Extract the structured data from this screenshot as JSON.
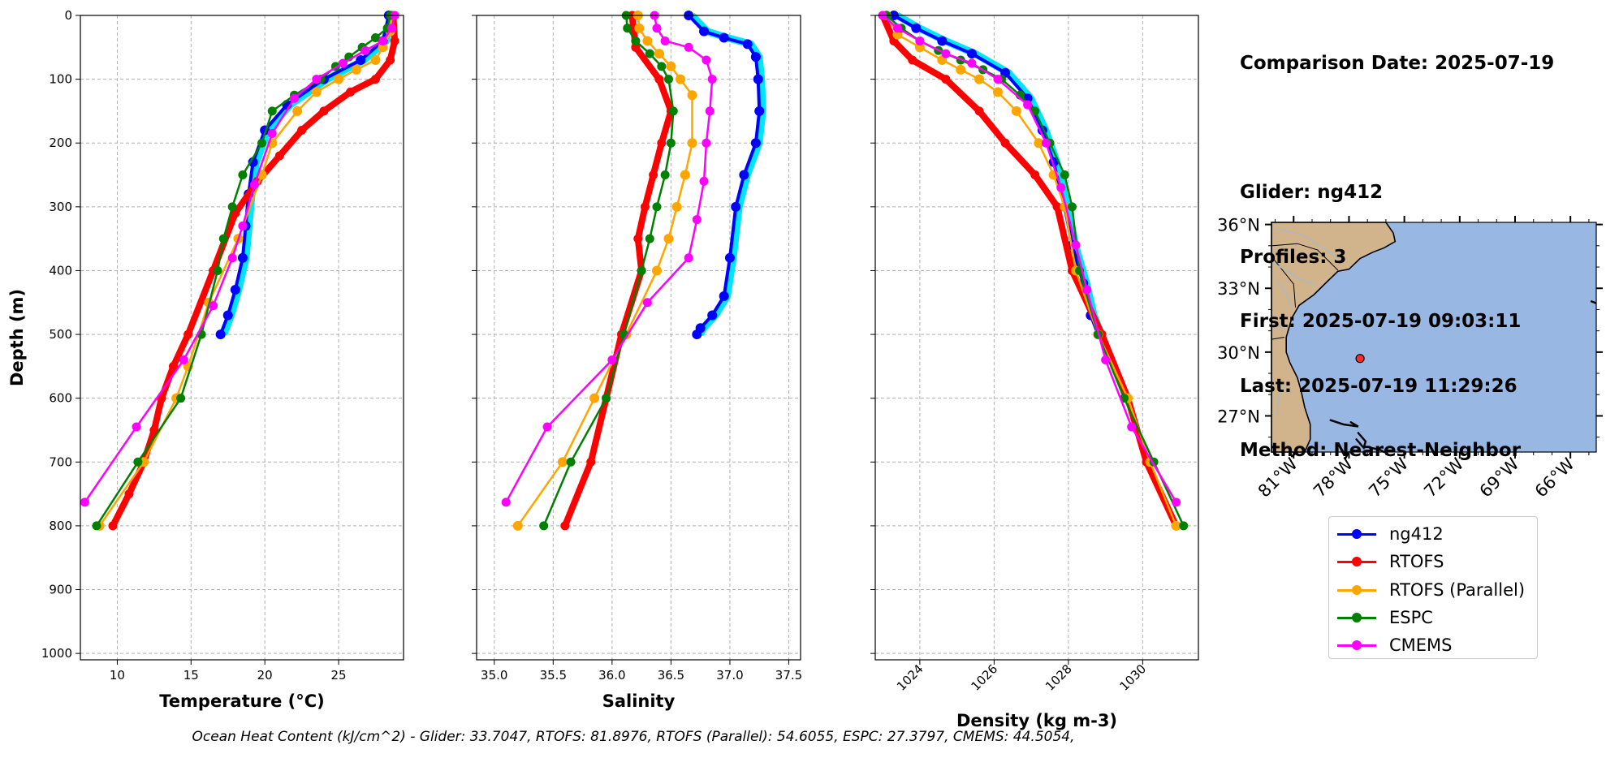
{
  "colors": {
    "ng412": "#0000ff",
    "ng412_raw": "#00e5ff",
    "RTOFS": "#ff0000",
    "RTOFS (Parallel)": "#ffa500",
    "ESPC": "#008000",
    "CMEMS": "#ff00ff",
    "land": "#d2b48c",
    "ocean": "#98b7e2",
    "rivers": "#aab8c8",
    "grid": "#b0b0b0"
  },
  "info": {
    "comparison_date": "Comparison Date: 2025-07-19",
    "glider": "Glider: ng412",
    "profiles": "Profiles: 3",
    "first": "First: 2025-07-19 09:03:11",
    "last": "Last: 2025-07-19 11:29:26",
    "method": "Method: Nearest-Neighbor"
  },
  "legend": [
    "ng412",
    "RTOFS",
    "RTOFS (Parallel)",
    "ESPC",
    "CMEMS"
  ],
  "footer": "Ocean Heat Content (kJ/cm^2) - Glider: 33.7047,  RTOFS: 81.8976,  RTOFS (Parallel): 54.6055,  ESPC: 27.3797,  CMEMS: 44.5054,",
  "chart_data": [
    {
      "type": "line",
      "xlabel": "Temperature (°C)",
      "ylabel": "Depth (m)",
      "xlim": [
        7.5,
        29.4
      ],
      "ylim": [
        1010,
        0
      ],
      "xticks": [
        10,
        15,
        20,
        25
      ],
      "yticks": [
        0,
        100,
        200,
        300,
        400,
        500,
        600,
        700,
        800,
        900,
        1000
      ],
      "grid": true,
      "series": [
        {
          "name": "ng412",
          "values": [
            [
              28.4,
              0
            ],
            [
              28.0,
              40
            ],
            [
              26.5,
              70
            ],
            [
              24.0,
              100
            ],
            [
              21.5,
              140
            ],
            [
              20.0,
              180
            ],
            [
              19.2,
              230
            ],
            [
              18.9,
              280
            ],
            [
              18.7,
              330
            ],
            [
              18.5,
              380
            ],
            [
              18.0,
              430
            ],
            [
              17.5,
              470
            ],
            [
              17.0,
              500
            ]
          ]
        },
        {
          "name": "RTOFS",
          "values": [
            [
              28.7,
              0
            ],
            [
              28.8,
              40
            ],
            [
              28.5,
              70
            ],
            [
              27.5,
              100
            ],
            [
              25.8,
              120
            ],
            [
              24.0,
              150
            ],
            [
              22.5,
              180
            ],
            [
              21.0,
              220
            ],
            [
              19.5,
              260
            ],
            [
              18.0,
              310
            ],
            [
              16.5,
              400
            ],
            [
              14.8,
              500
            ],
            [
              13.8,
              550
            ],
            [
              13.0,
              600
            ],
            [
              12.5,
              650
            ],
            [
              11.8,
              700
            ],
            [
              10.8,
              750
            ],
            [
              9.7,
              800
            ]
          ]
        },
        {
          "name": "RTOFS (Parallel)",
          "values": [
            [
              28.6,
              0
            ],
            [
              28.5,
              25
            ],
            [
              28.0,
              50
            ],
            [
              27.5,
              70
            ],
            [
              26.2,
              85
            ],
            [
              25.0,
              100
            ],
            [
              23.5,
              120
            ],
            [
              22.2,
              150
            ],
            [
              20.5,
              200
            ],
            [
              19.8,
              250
            ],
            [
              18.2,
              350
            ],
            [
              16.2,
              450
            ],
            [
              14.8,
              550
            ],
            [
              14.0,
              600
            ],
            [
              11.8,
              700
            ],
            [
              8.8,
              800
            ]
          ]
        },
        {
          "name": "ESPC",
          "values": [
            [
              28.5,
              0
            ],
            [
              28.3,
              20
            ],
            [
              27.5,
              35
            ],
            [
              26.6,
              50
            ],
            [
              25.7,
              65
            ],
            [
              24.8,
              80
            ],
            [
              23.8,
              100
            ],
            [
              22.0,
              125
            ],
            [
              20.5,
              150
            ],
            [
              19.8,
              200
            ],
            [
              18.5,
              250
            ],
            [
              17.8,
              300
            ],
            [
              17.2,
              350
            ],
            [
              16.8,
              400
            ],
            [
              15.7,
              500
            ],
            [
              14.3,
              600
            ],
            [
              11.4,
              700
            ],
            [
              8.6,
              800
            ]
          ]
        },
        {
          "name": "CMEMS",
          "values": [
            [
              28.8,
              0
            ],
            [
              28.6,
              20
            ],
            [
              28.0,
              40
            ],
            [
              26.8,
              55
            ],
            [
              25.3,
              75
            ],
            [
              23.5,
              100
            ],
            [
              22.0,
              130
            ],
            [
              20.5,
              185
            ],
            [
              19.3,
              265
            ],
            [
              18.5,
              330
            ],
            [
              17.8,
              380
            ],
            [
              16.5,
              455
            ],
            [
              14.5,
              540
            ],
            [
              11.3,
              645
            ],
            [
              7.8,
              763
            ]
          ]
        }
      ]
    },
    {
      "type": "line",
      "xlabel": "Salinity",
      "xlim": [
        34.85,
        37.6
      ],
      "ylim": [
        1010,
        0
      ],
      "xticks": [
        35.0,
        35.5,
        36.0,
        36.5,
        37.0,
        37.5
      ],
      "grid": true,
      "series": [
        {
          "name": "ng412",
          "values": [
            [
              36.65,
              0
            ],
            [
              36.78,
              25
            ],
            [
              36.95,
              35
            ],
            [
              37.15,
              45
            ],
            [
              37.22,
              65
            ],
            [
              37.24,
              100
            ],
            [
              37.25,
              150
            ],
            [
              37.22,
              200
            ],
            [
              37.12,
              250
            ],
            [
              37.05,
              300
            ],
            [
              37.0,
              380
            ],
            [
              36.95,
              440
            ],
            [
              36.85,
              470
            ],
            [
              36.75,
              490
            ],
            [
              36.72,
              500
            ]
          ]
        },
        {
          "name": "RTOFS",
          "values": [
            [
              36.17,
              0
            ],
            [
              36.2,
              50
            ],
            [
              36.4,
              100
            ],
            [
              36.5,
              150
            ],
            [
              36.42,
              200
            ],
            [
              36.35,
              250
            ],
            [
              36.28,
              300
            ],
            [
              36.22,
              350
            ],
            [
              36.25,
              400
            ],
            [
              36.08,
              500
            ],
            [
              35.95,
              600
            ],
            [
              35.82,
              700
            ],
            [
              35.6,
              800
            ]
          ]
        },
        {
          "name": "RTOFS (Parallel)",
          "values": [
            [
              36.22,
              0
            ],
            [
              36.23,
              20
            ],
            [
              36.3,
              40
            ],
            [
              36.4,
              60
            ],
            [
              36.5,
              80
            ],
            [
              36.58,
              100
            ],
            [
              36.68,
              125
            ],
            [
              36.68,
              200
            ],
            [
              36.62,
              250
            ],
            [
              36.55,
              300
            ],
            [
              36.48,
              350
            ],
            [
              36.38,
              400
            ],
            [
              36.12,
              500
            ],
            [
              35.85,
              600
            ],
            [
              35.58,
              700
            ],
            [
              35.2,
              800
            ]
          ]
        },
        {
          "name": "ESPC",
          "values": [
            [
              36.12,
              0
            ],
            [
              36.13,
              20
            ],
            [
              36.2,
              40
            ],
            [
              36.32,
              60
            ],
            [
              36.42,
              80
            ],
            [
              36.48,
              100
            ],
            [
              36.52,
              150
            ],
            [
              36.5,
              200
            ],
            [
              36.45,
              250
            ],
            [
              36.38,
              300
            ],
            [
              36.32,
              350
            ],
            [
              36.25,
              400
            ],
            [
              36.1,
              500
            ],
            [
              35.95,
              600
            ],
            [
              35.65,
              700
            ],
            [
              35.42,
              800
            ]
          ]
        },
        {
          "name": "CMEMS",
          "values": [
            [
              36.36,
              0
            ],
            [
              36.38,
              20
            ],
            [
              36.45,
              40
            ],
            [
              36.65,
              50
            ],
            [
              36.8,
              70
            ],
            [
              36.85,
              100
            ],
            [
              36.83,
              150
            ],
            [
              36.8,
              200
            ],
            [
              36.78,
              260
            ],
            [
              36.72,
              320
            ],
            [
              36.65,
              380
            ],
            [
              36.3,
              450
            ],
            [
              36.0,
              540
            ],
            [
              35.45,
              645
            ],
            [
              35.1,
              763
            ]
          ]
        }
      ]
    },
    {
      "type": "line",
      "xlabel": "Density (kg m-3)",
      "xlim": [
        1022.8,
        1031.5
      ],
      "ylim": [
        1010,
        0
      ],
      "xticks": [
        1024,
        1026,
        1028,
        1030
      ],
      "grid": true,
      "series": [
        {
          "name": "ng412",
          "values": [
            [
              1023.3,
              0
            ],
            [
              1023.9,
              20
            ],
            [
              1024.6,
              40
            ],
            [
              1025.4,
              60
            ],
            [
              1026.3,
              90
            ],
            [
              1026.9,
              130
            ],
            [
              1027.3,
              180
            ],
            [
              1027.6,
              230
            ],
            [
              1027.9,
              300
            ],
            [
              1028.1,
              360
            ],
            [
              1028.4,
              420
            ],
            [
              1028.6,
              470
            ],
            [
              1028.8,
              500
            ]
          ]
        },
        {
          "name": "RTOFS",
          "values": [
            [
              1023.0,
              0
            ],
            [
              1023.3,
              40
            ],
            [
              1023.8,
              70
            ],
            [
              1024.7,
              100
            ],
            [
              1025.6,
              150
            ],
            [
              1026.3,
              200
            ],
            [
              1027.1,
              250
            ],
            [
              1027.7,
              300
            ],
            [
              1028.1,
              400
            ],
            [
              1028.9,
              500
            ],
            [
              1029.6,
              600
            ],
            [
              1030.1,
              700
            ],
            [
              1030.9,
              800
            ]
          ]
        },
        {
          "name": "RTOFS (Parallel)",
          "values": [
            [
              1023.1,
              0
            ],
            [
              1023.4,
              30
            ],
            [
              1024.0,
              50
            ],
            [
              1024.6,
              70
            ],
            [
              1025.1,
              85
            ],
            [
              1025.6,
              100
            ],
            [
              1026.1,
              120
            ],
            [
              1026.6,
              150
            ],
            [
              1027.2,
              200
            ],
            [
              1027.6,
              250
            ],
            [
              1027.9,
              300
            ],
            [
              1028.2,
              400
            ],
            [
              1028.8,
              500
            ],
            [
              1029.6,
              600
            ],
            [
              1030.2,
              700
            ],
            [
              1030.9,
              800
            ]
          ]
        },
        {
          "name": "ESPC",
          "values": [
            [
              1023.1,
              0
            ],
            [
              1023.5,
              20
            ],
            [
              1024.0,
              40
            ],
            [
              1024.5,
              55
            ],
            [
              1025.1,
              70
            ],
            [
              1025.7,
              85
            ],
            [
              1026.2,
              100
            ],
            [
              1026.7,
              125
            ],
            [
              1027.1,
              150
            ],
            [
              1027.5,
              200
            ],
            [
              1027.9,
              250
            ],
            [
              1028.1,
              300
            ],
            [
              1028.3,
              400
            ],
            [
              1028.8,
              500
            ],
            [
              1029.5,
              600
            ],
            [
              1030.3,
              700
            ],
            [
              1031.1,
              800
            ]
          ]
        },
        {
          "name": "CMEMS",
          "values": [
            [
              1023.0,
              0
            ],
            [
              1023.4,
              20
            ],
            [
              1024.0,
              40
            ],
            [
              1024.7,
              60
            ],
            [
              1025.4,
              75
            ],
            [
              1026.1,
              100
            ],
            [
              1026.9,
              140
            ],
            [
              1027.4,
              200
            ],
            [
              1027.8,
              270
            ],
            [
              1028.2,
              360
            ],
            [
              1028.5,
              430
            ],
            [
              1029.0,
              540
            ],
            [
              1029.7,
              645
            ],
            [
              1030.9,
              763
            ]
          ]
        }
      ]
    },
    {
      "type": "map",
      "lon_range": [
        -82.2,
        -64.6
      ],
      "lat_range": [
        25.3,
        36.1
      ],
      "lat_ticks": [
        "36°N",
        "33°N",
        "30°N",
        "27°N"
      ],
      "lon_ticks": [
        "81°W",
        "78°W",
        "75°W",
        "72°W",
        "69°W",
        "66°W"
      ],
      "glider_position": [
        -77.4,
        29.7
      ]
    }
  ]
}
